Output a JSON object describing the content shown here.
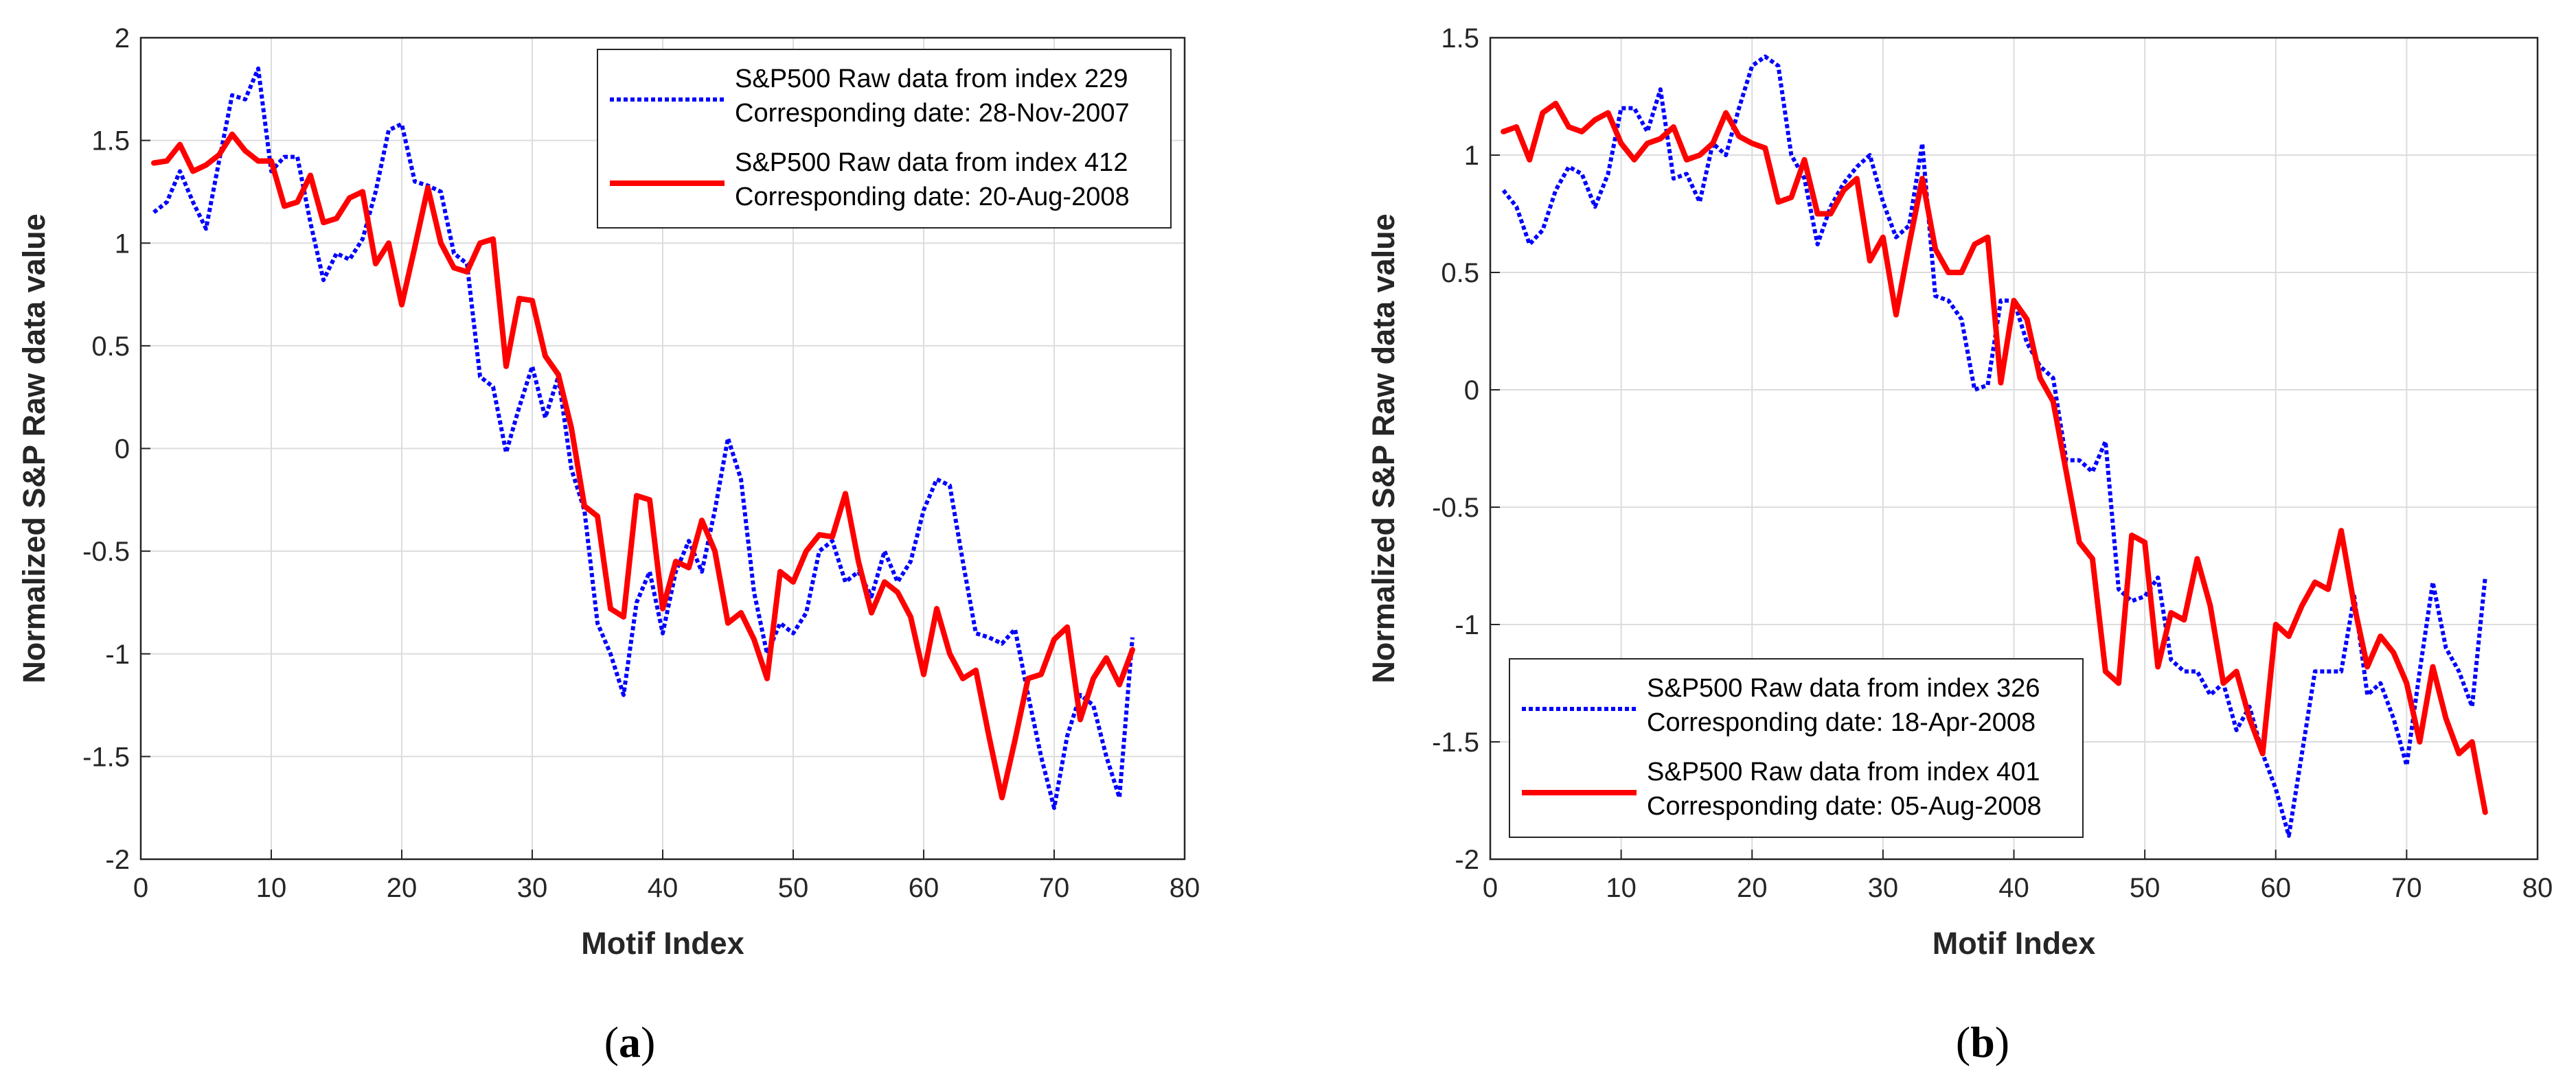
{
  "chart_data": [
    {
      "type": "line",
      "panel": "a",
      "caption_open": "(",
      "caption_letter": "a",
      "caption_close": ")",
      "xlabel": "Motif Index",
      "ylabel": "Normalized S&P Raw data value",
      "xlim": [
        0,
        80
      ],
      "ylim": [
        -2,
        2
      ],
      "xticks": [
        "0",
        "10",
        "20",
        "30",
        "40",
        "50",
        "60",
        "70",
        "80"
      ],
      "yticks": [
        "2",
        "1.5",
        "1",
        "0.5",
        "0",
        "-0.5",
        "-1",
        "-1.5",
        "-2"
      ],
      "grid": true,
      "legend_position": "top-right",
      "series": [
        {
          "name": "S&P500 Raw data from index 229",
          "legend_line2": "Corresponding date: 28-Nov-2007",
          "color": "#0000ff",
          "style": "dotted",
          "x": [
            1,
            2,
            3,
            4,
            5,
            6,
            7,
            8,
            9,
            10,
            11,
            12,
            13,
            14,
            15,
            16,
            17,
            18,
            19,
            20,
            21,
            22,
            23,
            24,
            25,
            26,
            27,
            28,
            29,
            30,
            31,
            32,
            33,
            34,
            35,
            36,
            37,
            38,
            39,
            40,
            41,
            42,
            43,
            44,
            45,
            46,
            47,
            48,
            49,
            50,
            51,
            52,
            53,
            54,
            55,
            56,
            57,
            58,
            59,
            60,
            61,
            62,
            63,
            64,
            65,
            66,
            67,
            68,
            69,
            70,
            71,
            72,
            73,
            74,
            75,
            76
          ],
          "y": [
            1.15,
            1.2,
            1.35,
            1.2,
            1.07,
            1.4,
            1.72,
            1.7,
            1.85,
            1.35,
            1.42,
            1.42,
            1.1,
            0.82,
            0.95,
            0.92,
            1.02,
            1.25,
            1.55,
            1.58,
            1.3,
            1.28,
            1.25,
            0.95,
            0.9,
            0.35,
            0.3,
            -0.02,
            0.2,
            0.4,
            0.15,
            0.35,
            -0.1,
            -0.3,
            -0.85,
            -1.0,
            -1.2,
            -0.75,
            -0.6,
            -0.9,
            -0.6,
            -0.45,
            -0.6,
            -0.3,
            0.05,
            -0.15,
            -0.7,
            -1.0,
            -0.85,
            -0.9,
            -0.8,
            -0.5,
            -0.45,
            -0.65,
            -0.6,
            -0.72,
            -0.5,
            -0.65,
            -0.55,
            -0.3,
            -0.15,
            -0.18,
            -0.55,
            -0.9,
            -0.92,
            -0.95,
            -0.88,
            -1.2,
            -1.5,
            -1.75,
            -1.4,
            -1.2,
            -1.25,
            -1.5,
            -1.7,
            -0.92
          ]
        },
        {
          "name": "S&P500 Raw data from index 412",
          "legend_line2": "Corresponding date: 20-Aug-2008",
          "color": "#ff0000",
          "style": "solid",
          "x": [
            1,
            2,
            3,
            4,
            5,
            6,
            7,
            8,
            9,
            10,
            11,
            12,
            13,
            14,
            15,
            16,
            17,
            18,
            19,
            20,
            21,
            22,
            23,
            24,
            25,
            26,
            27,
            28,
            29,
            30,
            31,
            32,
            33,
            34,
            35,
            36,
            37,
            38,
            39,
            40,
            41,
            42,
            43,
            44,
            45,
            46,
            47,
            48,
            49,
            50,
            51,
            52,
            53,
            54,
            55,
            56,
            57,
            58,
            59,
            60,
            61,
            62,
            63,
            64,
            65,
            66,
            67,
            68,
            69,
            70,
            71,
            72,
            73,
            74,
            75,
            76
          ],
          "y": [
            1.39,
            1.4,
            1.48,
            1.35,
            1.38,
            1.43,
            1.53,
            1.45,
            1.4,
            1.4,
            1.18,
            1.2,
            1.33,
            1.1,
            1.12,
            1.22,
            1.25,
            0.9,
            1.0,
            0.7,
            0.98,
            1.27,
            1.0,
            0.88,
            0.86,
            1.0,
            1.02,
            0.4,
            0.73,
            0.72,
            0.45,
            0.36,
            0.1,
            -0.28,
            -0.33,
            -0.78,
            -0.82,
            -0.23,
            -0.25,
            -0.78,
            -0.55,
            -0.58,
            -0.35,
            -0.5,
            -0.85,
            -0.8,
            -0.93,
            -1.12,
            -0.6,
            -0.65,
            -0.5,
            -0.42,
            -0.43,
            -0.22,
            -0.55,
            -0.8,
            -0.65,
            -0.7,
            -0.82,
            -1.1,
            -0.78,
            -1.0,
            -1.12,
            -1.08,
            -1.4,
            -1.7,
            -1.42,
            -1.12,
            -1.1,
            -0.93,
            -0.87,
            -1.32,
            -1.12,
            -1.02,
            -1.15,
            -0.98
          ]
        }
      ]
    },
    {
      "type": "line",
      "panel": "b",
      "caption_open": "(",
      "caption_letter": "b",
      "caption_close": ")",
      "xlabel": "Motif Index",
      "ylabel": "Normalized S&P Raw data value",
      "xlim": [
        0,
        80
      ],
      "ylim": [
        -2,
        1.5
      ],
      "xticks": [
        "0",
        "10",
        "20",
        "30",
        "40",
        "50",
        "60",
        "70",
        "80"
      ],
      "yticks": [
        "1.5",
        "1",
        "0.5",
        "0",
        "-0.5",
        "-1",
        "-1.5",
        "-2"
      ],
      "grid": true,
      "legend_position": "bottom-left",
      "series": [
        {
          "name": "S&P500 Raw data from index 326",
          "legend_line2": "Corresponding date: 18-Apr-2008",
          "color": "#0000ff",
          "style": "dotted",
          "x": [
            1,
            2,
            3,
            4,
            5,
            6,
            7,
            8,
            9,
            10,
            11,
            12,
            13,
            14,
            15,
            16,
            17,
            18,
            19,
            20,
            21,
            22,
            23,
            24,
            25,
            26,
            27,
            28,
            29,
            30,
            31,
            32,
            33,
            34,
            35,
            36,
            37,
            38,
            39,
            40,
            41,
            42,
            43,
            44,
            45,
            46,
            47,
            48,
            49,
            50,
            51,
            52,
            53,
            54,
            55,
            56,
            57,
            58,
            59,
            60,
            61,
            62,
            63,
            64,
            65,
            66,
            67,
            68,
            69,
            70,
            71,
            72,
            73,
            74,
            75,
            76
          ],
          "y": [
            0.85,
            0.78,
            0.62,
            0.68,
            0.85,
            0.95,
            0.92,
            0.78,
            0.92,
            1.2,
            1.2,
            1.1,
            1.28,
            0.9,
            0.92,
            0.8,
            1.05,
            1.0,
            1.2,
            1.38,
            1.42,
            1.38,
            1.0,
            0.9,
            0.62,
            0.78,
            0.88,
            0.95,
            1.0,
            0.8,
            0.65,
            0.7,
            1.05,
            0.4,
            0.38,
            0.3,
            0.0,
            0.02,
            0.38,
            0.38,
            0.2,
            0.1,
            0.05,
            -0.3,
            -0.3,
            -0.35,
            -0.22,
            -0.85,
            -0.9,
            -0.88,
            -0.8,
            -1.15,
            -1.2,
            -1.2,
            -1.3,
            -1.25,
            -1.45,
            -1.35,
            -1.55,
            -1.7,
            -1.9,
            -1.55,
            -1.2,
            -1.2,
            -1.2,
            -0.88,
            -1.3,
            -1.25,
            -1.4,
            -1.6,
            -1.2,
            -0.82,
            -1.1,
            -1.2,
            -1.35,
            -0.8
          ]
        },
        {
          "name": "S&P500 Raw data from index 401",
          "legend_line2": "Corresponding date: 05-Aug-2008",
          "color": "#ff0000",
          "style": "solid",
          "x": [
            1,
            2,
            3,
            4,
            5,
            6,
            7,
            8,
            9,
            10,
            11,
            12,
            13,
            14,
            15,
            16,
            17,
            18,
            19,
            20,
            21,
            22,
            23,
            24,
            25,
            26,
            27,
            28,
            29,
            30,
            31,
            32,
            33,
            34,
            35,
            36,
            37,
            38,
            39,
            40,
            41,
            42,
            43,
            44,
            45,
            46,
            47,
            48,
            49,
            50,
            51,
            52,
            53,
            54,
            55,
            56,
            57,
            58,
            59,
            60,
            61,
            62,
            63,
            64,
            65,
            66,
            67,
            68,
            69,
            70,
            71,
            72,
            73,
            74,
            75,
            76
          ],
          "y": [
            1.1,
            1.12,
            0.98,
            1.18,
            1.22,
            1.12,
            1.1,
            1.15,
            1.18,
            1.05,
            0.98,
            1.05,
            1.07,
            1.12,
            0.98,
            1.0,
            1.05,
            1.18,
            1.08,
            1.05,
            1.03,
            0.8,
            0.82,
            0.98,
            0.75,
            0.75,
            0.85,
            0.9,
            0.55,
            0.65,
            0.32,
            0.62,
            0.9,
            0.6,
            0.5,
            0.5,
            0.62,
            0.65,
            0.03,
            0.38,
            0.3,
            0.05,
            -0.05,
            -0.35,
            -0.65,
            -0.72,
            -1.2,
            -1.25,
            -0.62,
            -0.65,
            -1.18,
            -0.95,
            -0.98,
            -0.72,
            -0.92,
            -1.25,
            -1.2,
            -1.4,
            -1.55,
            -1.0,
            -1.05,
            -0.92,
            -0.82,
            -0.85,
            -0.6,
            -0.92,
            -1.18,
            -1.05,
            -1.12,
            -1.25,
            -1.5,
            -1.18,
            -1.4,
            -1.55,
            -1.5,
            -1.8
          ]
        }
      ]
    }
  ]
}
